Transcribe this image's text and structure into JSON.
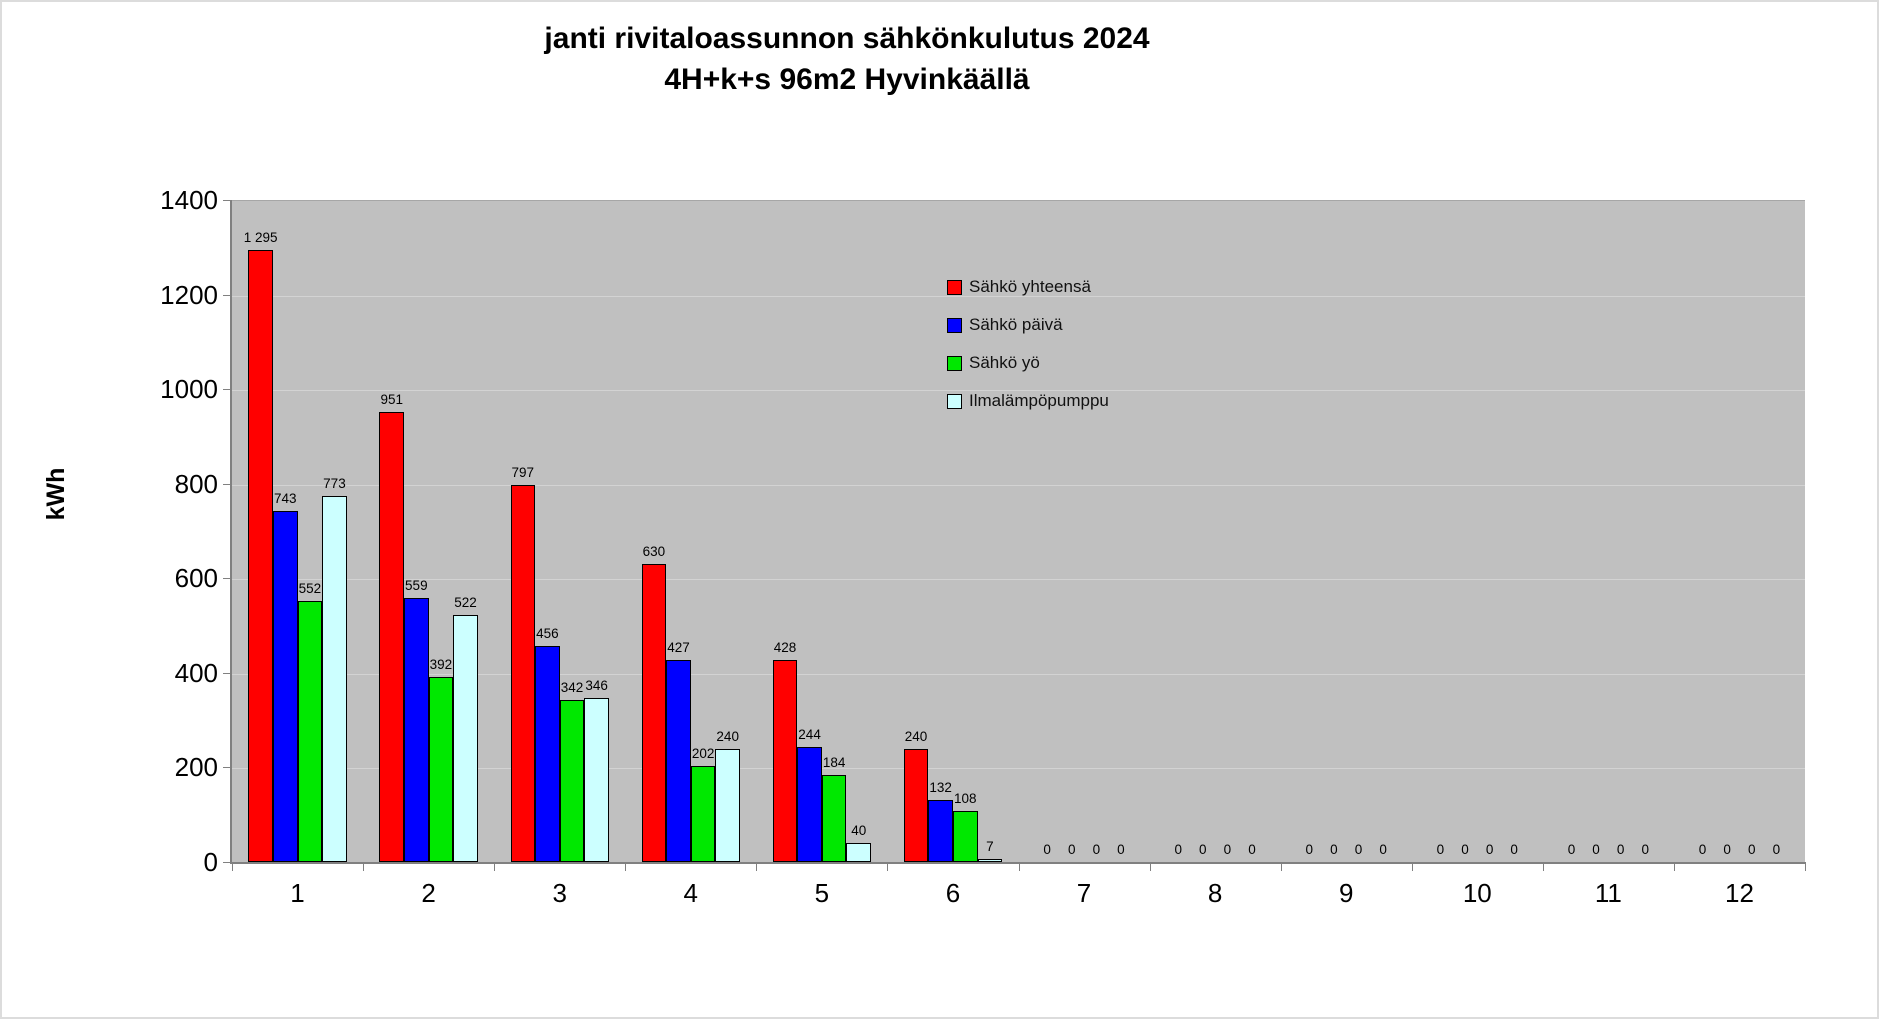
{
  "chart_data": {
    "type": "bar",
    "title": [
      "janti rivitaloassunnon sähkönkulutus 2024",
      "4H+k+s 96m2 Hyvinkäällä"
    ],
    "ylabel": "kWh",
    "ylim": [
      0,
      1400
    ],
    "yticks": [
      0,
      200,
      400,
      600,
      800,
      1000,
      1200,
      1400
    ],
    "categories": [
      "1",
      "2",
      "3",
      "4",
      "5",
      "6",
      "7",
      "8",
      "9",
      "10",
      "11",
      "12"
    ],
    "grid": true,
    "legend_position": "inside-top-right",
    "series": [
      {
        "name": "Sähkö yhteensä",
        "color": "#FF0000",
        "values": [
          1295,
          951,
          797,
          630,
          428,
          240,
          0,
          0,
          0,
          0,
          0,
          0
        ]
      },
      {
        "name": "Sähkö päivä",
        "color": "#0000FF",
        "values": [
          743,
          559,
          456,
          427,
          244,
          132,
          0,
          0,
          0,
          0,
          0,
          0
        ]
      },
      {
        "name": "Sähkö yö",
        "color": "#00E800",
        "values": [
          552,
          392,
          342,
          202,
          184,
          108,
          0,
          0,
          0,
          0,
          0,
          0
        ]
      },
      {
        "name": "Ilmalämpöpumppu",
        "color": "#CCFFFF",
        "values": [
          773,
          522,
          346,
          240,
          40,
          7,
          0,
          0,
          0,
          0,
          0,
          0
        ]
      }
    ],
    "colors": {
      "plot_bg": "#C0C0C0",
      "gridline": "#D3D3D3",
      "axis": "#808080",
      "bar_border": "#000000"
    },
    "data_label_thousands_separator": " "
  }
}
